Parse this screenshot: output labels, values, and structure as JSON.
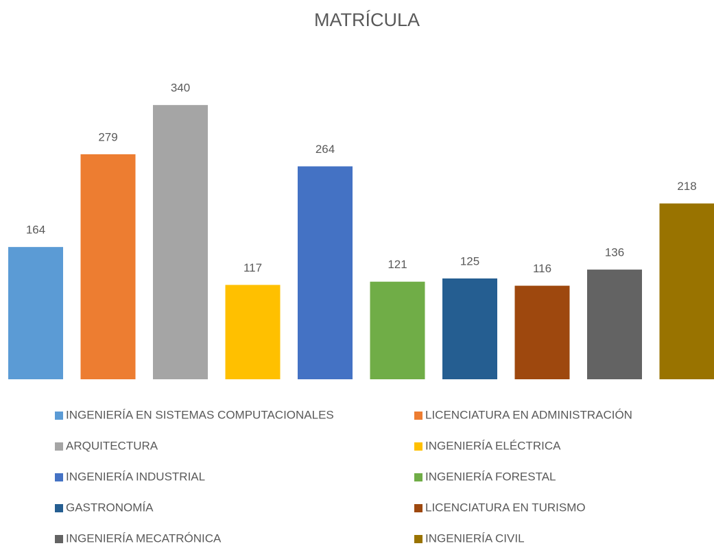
{
  "chart_data": {
    "type": "bar",
    "title": "MATRÍCULA",
    "ylim": [
      0,
      360
    ],
    "series": [
      {
        "name": "INGENIERÍA EN SISTEMAS COMPUTACIONALES",
        "color": "#5b9bd5",
        "values": [
          164
        ]
      },
      {
        "name": "LICENCIATURA EN ADMINISTRACIÓN",
        "color": "#ed7d31",
        "values": [
          279
        ]
      },
      {
        "name": "ARQUITECTURA",
        "color": "#a5a5a5",
        "values": [
          340
        ]
      },
      {
        "name": "INGENIERÍA ELÉCTRICA",
        "color": "#ffc000",
        "values": [
          117
        ]
      },
      {
        "name": "INGENIERÍA INDUSTRIAL",
        "color": "#4472c4",
        "values": [
          264
        ]
      },
      {
        "name": "INGENIERÍA FORESTAL",
        "color": "#70ad47",
        "values": [
          121
        ]
      },
      {
        "name": "GASTRONOMÍA",
        "color": "#255e91",
        "values": [
          125
        ]
      },
      {
        "name": "LICENCIATURA EN TURISMO",
        "color": "#9e480e",
        "values": [
          116
        ]
      },
      {
        "name": "INGENIERÍA MECATRÓNICA",
        "color": "#636363",
        "values": [
          136
        ]
      },
      {
        "name": "INGENIERÍA CIVIL",
        "color": "#997300",
        "values": [
          218
        ]
      }
    ]
  }
}
